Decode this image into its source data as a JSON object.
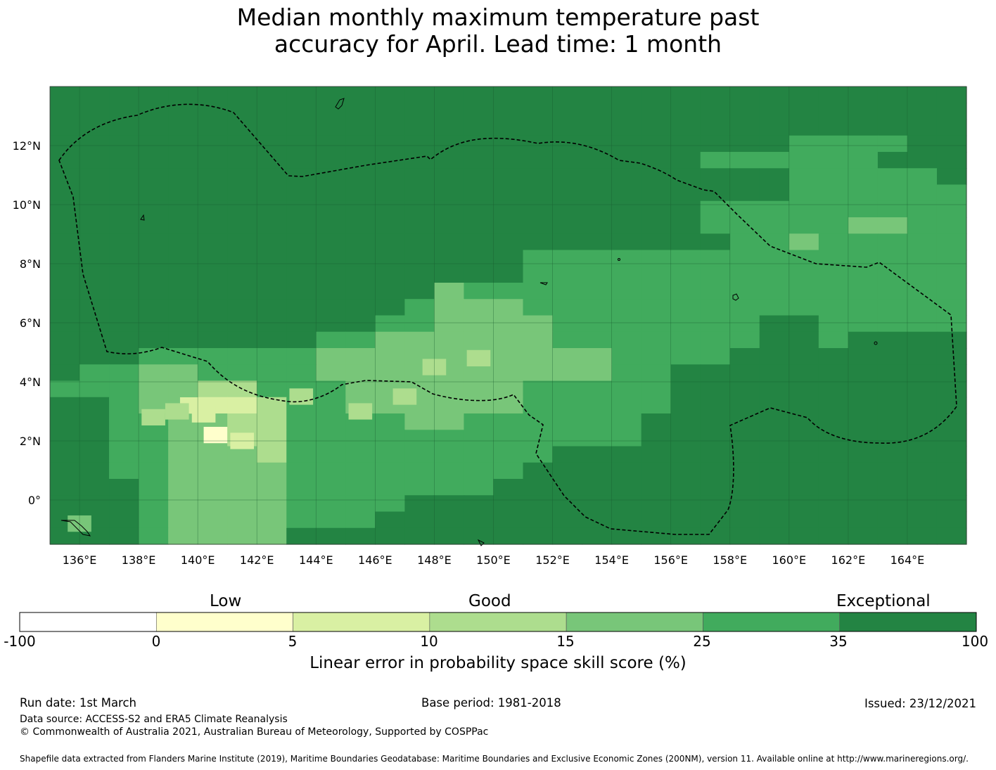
{
  "title": {
    "line1": "Median monthly maximum temperature past",
    "line2": "accuracy for April. Lead time: 1 month"
  },
  "map": {
    "lon_ticks": [
      "136°E",
      "138°E",
      "140°E",
      "142°E",
      "144°E",
      "146°E",
      "148°E",
      "150°E",
      "152°E",
      "154°E",
      "156°E",
      "158°E",
      "160°E",
      "162°E",
      "164°E"
    ],
    "lat_ticks": [
      "12°N",
      "10°N",
      "8°N",
      "6°N",
      "4°N",
      "2°N",
      "0°"
    ],
    "grid_columns": 31,
    "grid_rows": 28,
    "cell_class_codes": [
      "6666666666666666666666666666666",
      "6666666666666666666666666666666",
      "6666666666666666666666666666666",
      "6666666666666666666666666555566",
      "6666666666666666666666555555666",
      "6666666666666666666666666555556",
      "6666666666666666666666666555555",
      "6666666666666666666666555555555",
      "6666666666666666666666555554455",
      "6666666666666666666666655455555",
      "6666666666666666555555555555555",
      "6666666666666666555555555555555",
      "6666666666666455555555555555555",
      "6666666666665444555555555555555",
      "6666666666655444455555556655555",
      "6666666665544444455555556656666",
      "6665555554444444444555566666666",
      "6554455554444444444556666666666",
      "5554433555444444555556666666666",
      "6654422355444444555556666666666",
      "6655443355554455555566666666666",
      "6655443355555555555566666666666",
      "6655444355555555566666666666666",
      "6655444455555555666666666666666",
      "6665444455555556666666666666666",
      "6665444455556666666666666666666",
      "6665444455566666666666666666666",
      "6665444466666666666666666666666"
    ],
    "patches": [
      {
        "lon": 139.8,
        "lat": 3.2,
        "value": 5
      },
      {
        "lon": 140.6,
        "lat": 2.2,
        "value": 0
      },
      {
        "lon": 140.2,
        "lat": 2.9,
        "value": 5
      },
      {
        "lon": 141.5,
        "lat": 2.0,
        "value": 5
      },
      {
        "lon": 139.3,
        "lat": 3.0,
        "value": 10
      },
      {
        "lon": 138.5,
        "lat": 2.8,
        "value": 10
      },
      {
        "lon": 148.0,
        "lat": 4.5,
        "value": 10
      },
      {
        "lon": 149.5,
        "lat": 4.8,
        "value": 10
      },
      {
        "lon": 145.5,
        "lat": 3.0,
        "value": 10
      },
      {
        "lon": 147.0,
        "lat": 3.5,
        "value": 10
      },
      {
        "lon": 143.5,
        "lat": 3.5,
        "value": 10
      },
      {
        "lon": 136.0,
        "lat": -0.8,
        "value": 15
      }
    ],
    "coastline_style": "dashed EEZ boundary"
  },
  "colorbar": {
    "categories": [
      "Low",
      "Good",
      "Exceptional"
    ],
    "bins": [
      {
        "from": -100,
        "to": 0,
        "color": "#ffffff"
      },
      {
        "from": 0,
        "to": 5,
        "color": "#ffffcc"
      },
      {
        "from": 5,
        "to": 10,
        "color": "#d9f0a3"
      },
      {
        "from": 10,
        "to": 15,
        "color": "#addd8e"
      },
      {
        "from": 15,
        "to": 25,
        "color": "#78c679"
      },
      {
        "from": 25,
        "to": 35,
        "color": "#41ab5d"
      },
      {
        "from": 35,
        "to": 100,
        "color": "#238443"
      }
    ],
    "tick_labels": [
      "-100",
      "0",
      "5",
      "10",
      "15",
      "25",
      "35",
      "100"
    ],
    "label": "Linear error in probability space skill score (%)"
  },
  "footer": {
    "run_date": "Run date: 1st March",
    "base_period": "Base period: 1981-2018",
    "issued": "Issued: 23/12/2021",
    "data_source": "Data source: ACCESS-S2 and ERA5 Climate Reanalysis",
    "copyright": "© Commonwealth of Australia 2021, Australian Bureau of Meteorology, Supported by COSPPac",
    "shapefile": "Shapefile data extracted from Flanders Marine Institute (2019), Maritime Boundaries Geodatabase: Maritime Boundaries and Exclusive Economic Zones (200NM), version 11. Available online at http://www.marineregions.org/."
  }
}
